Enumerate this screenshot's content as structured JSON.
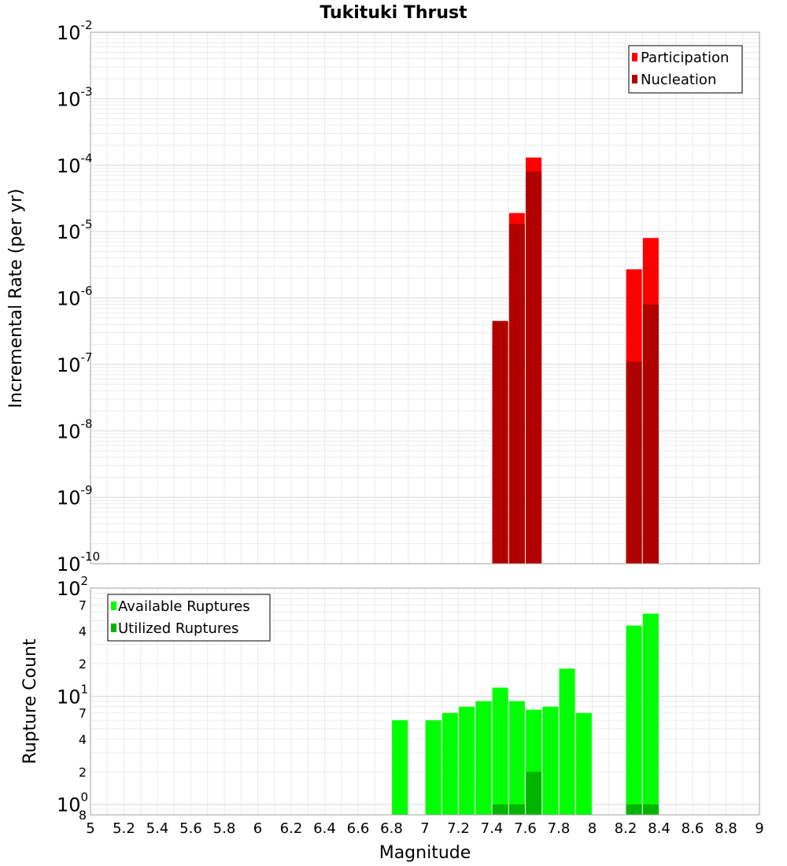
{
  "chart_data": [
    {
      "type": "bar",
      "title": "Tukituki Thrust",
      "xlabel": "",
      "ylabel": "Incremental Rate (per yr)",
      "y_scale": "log",
      "ylim": [
        1e-10,
        0.01
      ],
      "xlim": [
        5,
        9
      ],
      "y_tick_bases": [
        "10",
        "10",
        "10",
        "10",
        "10",
        "10",
        "10",
        "10",
        "10"
      ],
      "y_tick_exponents": [
        "-10",
        "-9",
        "-8",
        "-7",
        "-6",
        "-5",
        "-4",
        "-3",
        "-2"
      ],
      "grid": true,
      "legend_position": "top-right",
      "series": [
        {
          "name": "Participation",
          "color": "#ff0000",
          "x": [
            7.45,
            7.55,
            7.65,
            8.25,
            8.35
          ],
          "values": [
            4.5e-07,
            1.9e-05,
            0.00013,
            2.7e-06,
            8e-06
          ]
        },
        {
          "name": "Nucleation",
          "color": "#b00000",
          "x": [
            7.45,
            7.55,
            7.65,
            8.25,
            8.35
          ],
          "values": [
            4.5e-07,
            1.3e-05,
            8e-05,
            1.1e-07,
            8e-07
          ]
        }
      ]
    },
    {
      "type": "bar",
      "title": "",
      "xlabel": "Magnitude",
      "ylabel": "Rupture Count",
      "y_scale": "log",
      "ylim": [
        0.8,
        100
      ],
      "xlim": [
        5,
        9
      ],
      "x_ticks": [
        "5",
        "5.2",
        "5.4",
        "5.6",
        "5.8",
        "6",
        "6.2",
        "6.4",
        "6.6",
        "6.8",
        "7",
        "7.2",
        "7.4",
        "7.6",
        "7.8",
        "8",
        "8.2",
        "8.4",
        "8.6",
        "8.8",
        "9"
      ],
      "y_major_ticks": [
        {
          "value": 1,
          "base": "10",
          "exp": "0"
        },
        {
          "value": 10,
          "base": "10",
          "exp": "1"
        },
        {
          "value": 100,
          "base": "10",
          "exp": "2"
        }
      ],
      "y_minor_ticks": [
        {
          "value": 0.8,
          "label": "8"
        },
        {
          "value": 2,
          "label": "2"
        },
        {
          "value": 4,
          "label": "4"
        },
        {
          "value": 7,
          "label": "7"
        },
        {
          "value": 20,
          "label": "2"
        },
        {
          "value": 40,
          "label": "4"
        },
        {
          "value": 70,
          "label": "7"
        }
      ],
      "grid": true,
      "legend_position": "top-left",
      "series": [
        {
          "name": "Available Ruptures",
          "color": "#00ff00",
          "x": [
            6.85,
            7.05,
            7.15,
            7.25,
            7.35,
            7.45,
            7.55,
            7.65,
            7.75,
            7.85,
            7.95,
            8.25,
            8.35
          ],
          "values": [
            6,
            6,
            7,
            8,
            9,
            12,
            9,
            7.5,
            8,
            18,
            7,
            45,
            58
          ]
        },
        {
          "name": "Utilized Ruptures",
          "color": "#00b400",
          "x": [
            7.45,
            7.55,
            7.65,
            8.25,
            8.35
          ],
          "values": [
            1,
            1,
            2,
            1,
            1
          ]
        }
      ]
    }
  ]
}
